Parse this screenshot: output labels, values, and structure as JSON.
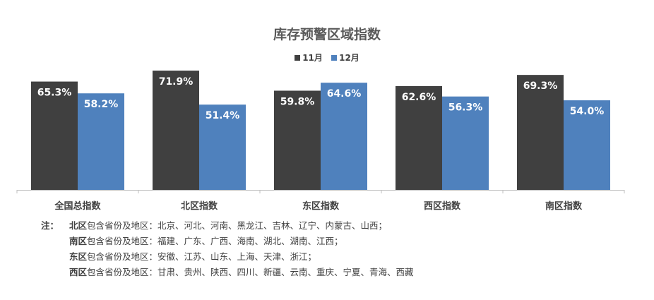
{
  "chart_data": {
    "type": "bar",
    "title": "库存预警区域指数",
    "categories": [
      "全国总指数",
      "北区指数",
      "东区指数",
      "西区指数",
      "南区指数"
    ],
    "series": [
      {
        "name": "11月",
        "color": "#404040",
        "values": [
          65.3,
          71.9,
          59.8,
          62.6,
          69.3
        ],
        "labels": [
          "65.3%",
          "71.9%",
          "59.8%",
          "62.6%",
          "69.3%"
        ]
      },
      {
        "name": "12月",
        "color": "#4F81BD",
        "values": [
          58.2,
          51.4,
          64.6,
          56.3,
          54.0
        ],
        "labels": [
          "58.2%",
          "51.4%",
          "64.6%",
          "56.3%",
          "54.0%"
        ]
      }
    ],
    "ylim": [
      0,
      75
    ],
    "grid": false,
    "legend": "top-center",
    "xlabel": "",
    "ylabel": ""
  },
  "notes": {
    "prefix": "注：",
    "lines": [
      {
        "region": "北区",
        "text": "包含省份及地区：北京、河北、河南、黑龙江、吉林、辽宁、内蒙古、山西；"
      },
      {
        "region": "南区",
        "text": "包含省份及地区：福建、广东、广西、海南、湖北、湖南、江西；"
      },
      {
        "region": "东区",
        "text": "包含省份及地区：安徽、江苏、山东、上海、天津、浙江；"
      },
      {
        "region": "西区",
        "text": "包含省份及地区：甘肃、贵州、陕西、四川、新疆、云南、重庆、宁夏、青海、西藏"
      }
    ]
  }
}
